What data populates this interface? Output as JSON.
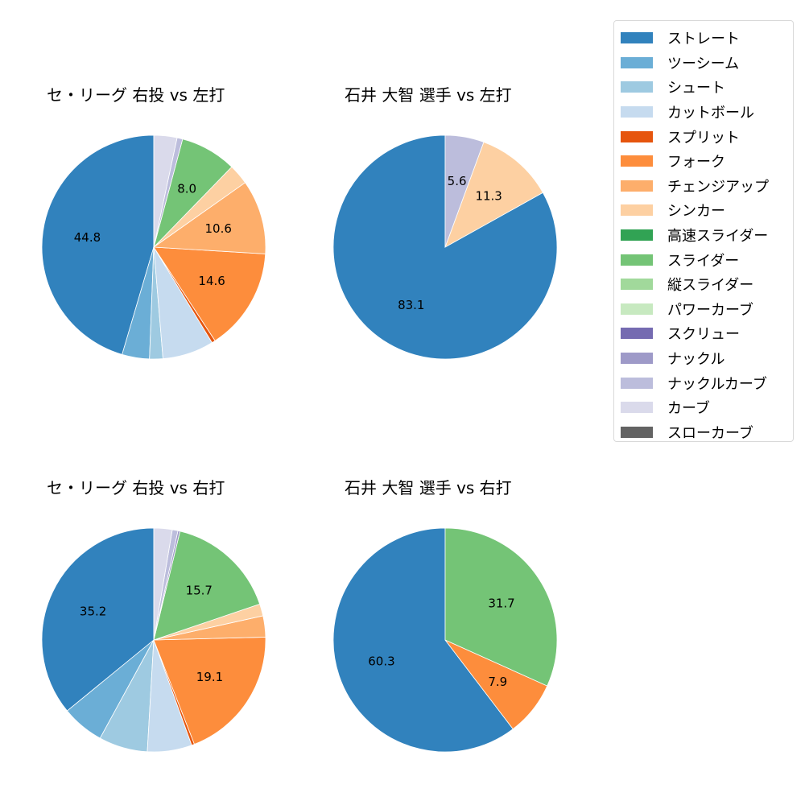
{
  "colors": {
    "ストレート": "#3182bd",
    "ツーシーム": "#6baed6",
    "シュート": "#9ecae1",
    "カットボール": "#c6dbef",
    "スプリット": "#e6550d",
    "フォーク": "#fd8d3c",
    "チェンジアップ": "#fdae6b",
    "シンカー": "#fdd0a2",
    "高速スライダー": "#31a354",
    "スライダー": "#74c476",
    "縦スライダー": "#a1d99b",
    "パワーカーブ": "#c7e9c0",
    "スクリュー": "#756bb1",
    "ナックル": "#9e9ac8",
    "ナックルカーブ": "#bcbddc",
    "カーブ": "#dadaeb",
    "スローカーブ": "#636363"
  },
  "legend": [
    "ストレート",
    "ツーシーム",
    "シュート",
    "カットボール",
    "スプリット",
    "フォーク",
    "チェンジアップ",
    "シンカー",
    "高速スライダー",
    "スライダー",
    "縦スライダー",
    "パワーカーブ",
    "スクリュー",
    "ナックル",
    "ナックルカーブ",
    "カーブ",
    "スローカーブ"
  ],
  "chart_data": [
    {
      "type": "pie",
      "title": "セ・リーグ 右投 vs 左打",
      "slices": [
        {
          "name": "ストレート",
          "value": 44.8,
          "label": "44.8"
        },
        {
          "name": "ツーシーム",
          "value": 3.9,
          "label": ""
        },
        {
          "name": "シュート",
          "value": 1.9,
          "label": ""
        },
        {
          "name": "カットボール",
          "value": 7.3,
          "label": ""
        },
        {
          "name": "スプリット",
          "value": 0.5,
          "label": ""
        },
        {
          "name": "フォーク",
          "value": 14.6,
          "label": "14.6"
        },
        {
          "name": "チェンジアップ",
          "value": 10.6,
          "label": "10.6"
        },
        {
          "name": "シンカー",
          "value": 2.9,
          "label": ""
        },
        {
          "name": "スライダー",
          "value": 8.0,
          "label": "8.0"
        },
        {
          "name": "ナックルカーブ",
          "value": 0.8,
          "label": ""
        },
        {
          "name": "カーブ",
          "value": 3.3,
          "label": ""
        }
      ]
    },
    {
      "type": "pie",
      "title": "石井 大智 選手 vs 左打",
      "slices": [
        {
          "name": "ストレート",
          "value": 83.1,
          "label": "83.1"
        },
        {
          "name": "シンカー",
          "value": 11.3,
          "label": "11.3"
        },
        {
          "name": "ナックルカーブ",
          "value": 5.6,
          "label": "5.6"
        }
      ]
    },
    {
      "type": "pie",
      "title": "セ・リーグ 右投 vs 右打",
      "slices": [
        {
          "name": "ストレート",
          "value": 35.2,
          "label": "35.2"
        },
        {
          "name": "ツーシーム",
          "value": 6.0,
          "label": ""
        },
        {
          "name": "シュート",
          "value": 6.9,
          "label": ""
        },
        {
          "name": "カットボール",
          "value": 6.3,
          "label": ""
        },
        {
          "name": "スプリット",
          "value": 0.4,
          "label": ""
        },
        {
          "name": "フォーク",
          "value": 19.1,
          "label": "19.1"
        },
        {
          "name": "チェンジアップ",
          "value": 3.0,
          "label": ""
        },
        {
          "name": "シンカー",
          "value": 1.7,
          "label": ""
        },
        {
          "name": "スライダー",
          "value": 15.7,
          "label": "15.7"
        },
        {
          "name": "ナックル",
          "value": 0.3,
          "label": ""
        },
        {
          "name": "ナックルカーブ",
          "value": 0.8,
          "label": ""
        },
        {
          "name": "カーブ",
          "value": 2.6,
          "label": ""
        }
      ]
    },
    {
      "type": "pie",
      "title": "石井 大智 選手 vs 右打",
      "slices": [
        {
          "name": "ストレート",
          "value": 60.3,
          "label": "60.3"
        },
        {
          "name": "フォーク",
          "value": 7.9,
          "label": "7.9"
        },
        {
          "name": "スライダー",
          "value": 31.7,
          "label": "31.7"
        }
      ]
    }
  ]
}
